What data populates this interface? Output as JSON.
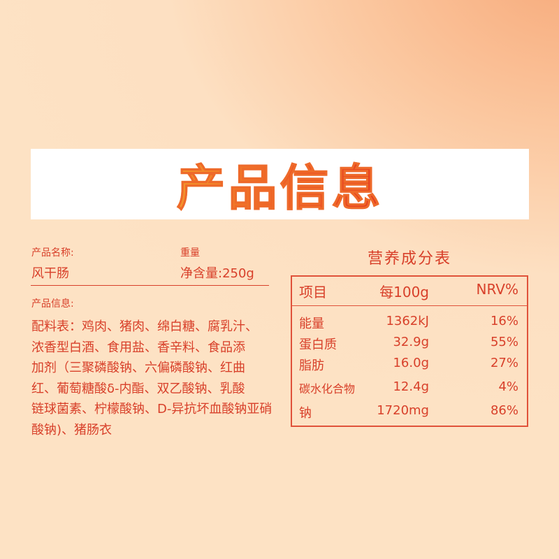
{
  "banner": {
    "title": "产品信息"
  },
  "product": {
    "name_label": "产品名称:",
    "name": "风干肠",
    "weight_label": "重量",
    "weight": "净含量:250g",
    "info_label": "产品信息:",
    "ingredients_lines": [
      "配料表：鸡肉、猪肉、绵白糖、腐乳汁、",
      "浓香型白酒、食用盐、香辛料、食品添",
      "加剂（三聚磷酸钠、六偏磷酸钠、红曲",
      "红、葡萄糖酸δ-内酯、双乙酸钠、乳酸",
      "链球菌素、柠檬酸钠、D-异抗坏血酸钠亚硝",
      "酸钠)、猪肠衣"
    ]
  },
  "nutrition": {
    "title": "营养成分表",
    "headers": [
      "项目",
      "每100g",
      "NRV%"
    ],
    "rows": [
      [
        "能量",
        "1362kJ",
        "16%"
      ],
      [
        "蛋白质",
        "32.9g",
        "55%"
      ],
      [
        "脂肪",
        "16.0g",
        "27%"
      ],
      [
        "碳水化合物",
        "12.4g",
        "4%"
      ],
      [
        "钠",
        "1720mg",
        "86%"
      ]
    ]
  },
  "colors": {
    "text": "#d8402a",
    "title_start": "#f39a2b",
    "title_end": "#e53b1f"
  }
}
